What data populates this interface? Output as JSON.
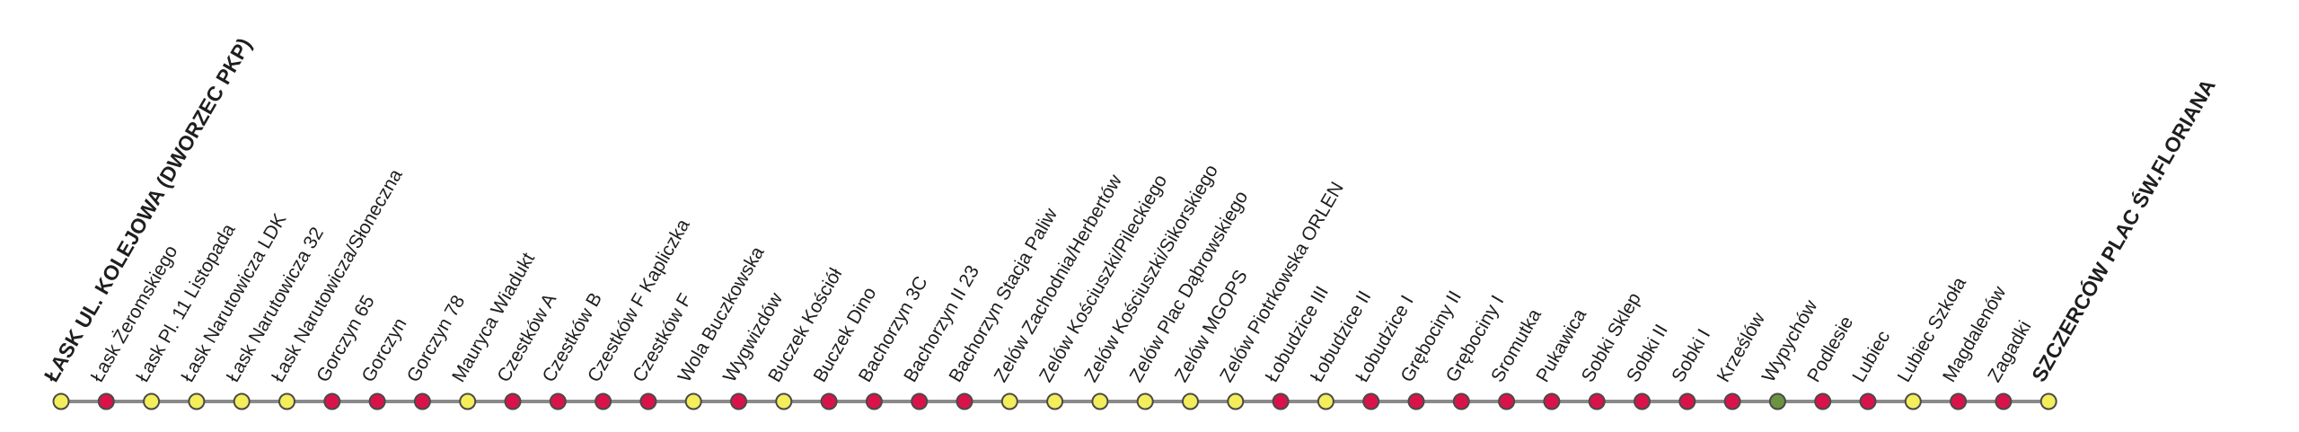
{
  "colors": {
    "line": "#8a8a8a",
    "stop_outline": "#4a4a4a",
    "normal": "#f3ee5a",
    "on_request": "#d9134a",
    "special": "#6b9440"
  },
  "stops": [
    {
      "name": "ŁASK UL. KOLEJOWA (DWORZEC PKP)",
      "kind": "normal",
      "terminal": true
    },
    {
      "name": "Łask Żeromskiego",
      "kind": "on_request"
    },
    {
      "name": "Łask Pl. 11 Listopada",
      "kind": "normal"
    },
    {
      "name": "Łask Narutowicza LDK",
      "kind": "normal"
    },
    {
      "name": "Łask Narutowicza 32",
      "kind": "normal"
    },
    {
      "name": "Łask Narutowicza/Słoneczna",
      "kind": "normal"
    },
    {
      "name": "Gorczyn 65",
      "kind": "on_request"
    },
    {
      "name": "Gorczyn",
      "kind": "on_request"
    },
    {
      "name": "Gorczyn 78",
      "kind": "on_request"
    },
    {
      "name": "Mauryca Wiadukt",
      "kind": "normal"
    },
    {
      "name": "Czestków A",
      "kind": "on_request"
    },
    {
      "name": "Czestków B",
      "kind": "on_request"
    },
    {
      "name": "Czestków F Kapliczka",
      "kind": "on_request"
    },
    {
      "name": "Czestków F",
      "kind": "on_request"
    },
    {
      "name": "Wola Buczkowska",
      "kind": "normal"
    },
    {
      "name": "Wygwizdów",
      "kind": "on_request"
    },
    {
      "name": "Buczek Kościół",
      "kind": "normal"
    },
    {
      "name": "Buczek Dino",
      "kind": "on_request"
    },
    {
      "name": "Bachorzyn 3C",
      "kind": "on_request"
    },
    {
      "name": "Bachorzyn II 23",
      "kind": "on_request"
    },
    {
      "name": "Bachorzyn Stacja Paliw",
      "kind": "on_request"
    },
    {
      "name": "Zelów Zachodnia/Herbertów",
      "kind": "normal"
    },
    {
      "name": "Zelów Kościuszki/Pileckiego",
      "kind": "normal"
    },
    {
      "name": "Zelów Kościuszki/Sikorskiego",
      "kind": "normal"
    },
    {
      "name": "Zelów Plac Dąbrowskiego",
      "kind": "normal"
    },
    {
      "name": "Zelów MGOPS",
      "kind": "normal"
    },
    {
      "name": "Zelów Piotrkowska ORLEN",
      "kind": "normal"
    },
    {
      "name": "Łobudzice III",
      "kind": "on_request"
    },
    {
      "name": "Łobudzice II",
      "kind": "normal"
    },
    {
      "name": "Łobudzice I",
      "kind": "on_request"
    },
    {
      "name": "Grębociny II",
      "kind": "on_request"
    },
    {
      "name": "Grębociny I",
      "kind": "on_request"
    },
    {
      "name": "Sromutka",
      "kind": "on_request"
    },
    {
      "name": "Pukawica",
      "kind": "on_request"
    },
    {
      "name": "Sobki Sklep",
      "kind": "on_request"
    },
    {
      "name": "Sobki II",
      "kind": "on_request"
    },
    {
      "name": "Sobki I",
      "kind": "on_request"
    },
    {
      "name": "Krześlów",
      "kind": "on_request"
    },
    {
      "name": "Wypychów",
      "kind": "special"
    },
    {
      "name": "Podlesie",
      "kind": "on_request"
    },
    {
      "name": "Lubiec",
      "kind": "on_request"
    },
    {
      "name": "Lubiec Szkoła",
      "kind": "normal"
    },
    {
      "name": "Magdalenów",
      "kind": "on_request"
    },
    {
      "name": "Zagadki",
      "kind": "on_request"
    },
    {
      "name": "SZCZERCÓW PLAC ŚW.FLORIANA",
      "kind": "normal",
      "terminal": true
    }
  ]
}
